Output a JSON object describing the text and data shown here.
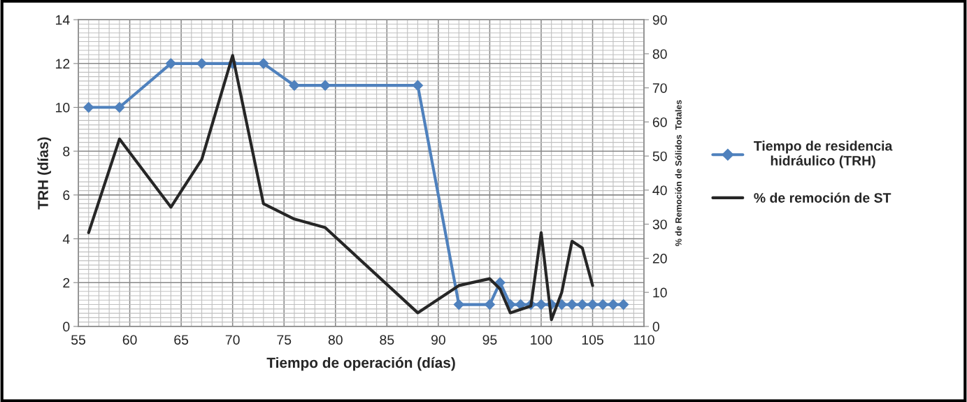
{
  "chart_data": {
    "type": "line",
    "xlabel": "Tiempo de operación (días)",
    "ylabel": "TRH (días)",
    "y2label": "% de Remoción de Sólidos  Totales",
    "xlim": [
      55,
      110
    ],
    "xticks": [
      55,
      60,
      65,
      70,
      75,
      80,
      85,
      90,
      95,
      100,
      105,
      110
    ],
    "ylim": [
      0,
      14
    ],
    "yticks": [
      0,
      2,
      4,
      6,
      8,
      10,
      12,
      14
    ],
    "y2lim": [
      0,
      90
    ],
    "y2ticks": [
      0,
      10,
      20,
      30,
      40,
      50,
      60,
      70,
      80,
      90
    ],
    "grid": true,
    "legend": "right",
    "series": [
      {
        "name": "Tiempo de residencia hidráulico (TRH)",
        "color": "#4f81bd",
        "marker": "diamond",
        "x": [
          56,
          59,
          64,
          67,
          70,
          73,
          76,
          79,
          88,
          92,
          95,
          96,
          97,
          98,
          99,
          100,
          101,
          102,
          103,
          104,
          105,
          106,
          107,
          108
        ],
        "values": [
          10,
          10,
          12,
          12,
          12,
          12,
          11,
          11,
          11,
          1,
          1,
          2,
          1,
          1,
          1,
          1,
          1,
          1,
          1,
          1,
          1,
          1,
          1,
          1
        ]
      },
      {
        "name": "% de remoción de ST",
        "color": "#262626",
        "marker": "none",
        "axis": "y2",
        "x": [
          56,
          59,
          64,
          67,
          70,
          73,
          76,
          79,
          88,
          92,
          95,
          96,
          97,
          99,
          100,
          101,
          102,
          103,
          104,
          105
        ],
        "values": [
          27.5,
          55,
          35,
          49,
          79.5,
          36,
          31.5,
          29,
          4,
          12,
          14,
          11,
          4,
          6,
          27.5,
          2,
          10,
          25,
          23,
          12
        ]
      }
    ]
  }
}
